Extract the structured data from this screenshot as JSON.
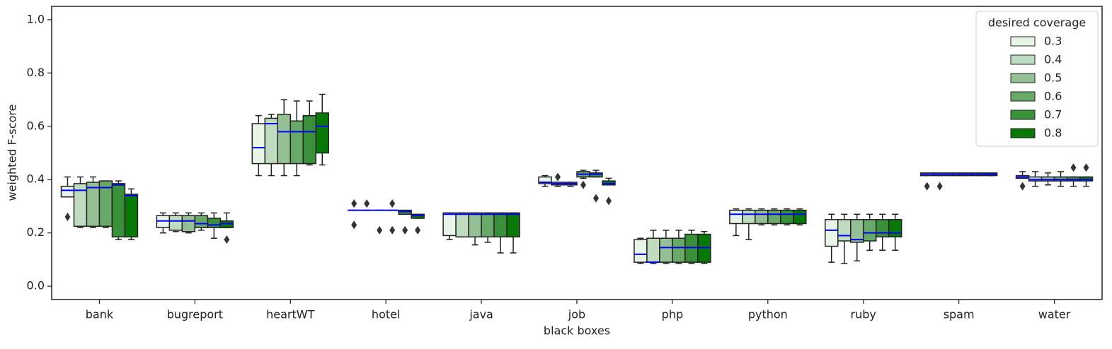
{
  "chart_data": {
    "type": "box",
    "xlabel": "black boxes",
    "ylabel": "weighted F-score",
    "categories": [
      "bank",
      "bugreport",
      "heartWT",
      "hotel",
      "java",
      "job",
      "php",
      "python",
      "ruby",
      "spam",
      "water"
    ],
    "ylim": [
      -0.05,
      1.05
    ],
    "yticks": [
      {
        "value": 0,
        "label": "0.0"
      },
      0.2,
      0.4,
      0.6,
      0.8,
      {
        "value": 1,
        "label": "1.0"
      }
    ],
    "median_color": "#0000ff",
    "legend_title": "desired coverage",
    "legend": "upper right",
    "series": [
      {
        "name": "0.3",
        "color": "#e8f4e8",
        "whislo": [
          0.335,
          0.2,
          0.415,
          0.285,
          0.175,
          0.375,
          0.085,
          0.19,
          0.09,
          0.415,
          0.405
        ],
        "q1": [
          0.335,
          0.22,
          0.46,
          0.285,
          0.19,
          0.385,
          0.09,
          0.235,
          0.15,
          0.415,
          0.405
        ],
        "median": [
          0.36,
          0.245,
          0.52,
          0.285,
          0.27,
          0.39,
          0.12,
          0.27,
          0.21,
          0.42,
          0.41
        ],
        "q3": [
          0.375,
          0.265,
          0.61,
          0.285,
          0.275,
          0.41,
          0.175,
          0.285,
          0.25,
          0.425,
          0.415
        ],
        "whishi": [
          0.41,
          0.275,
          0.64,
          0.285,
          0.275,
          0.415,
          0.18,
          0.29,
          0.27,
          0.425,
          0.43
        ],
        "fliers": [
          [
            0.26
          ],
          [],
          [],
          [
            0.31,
            0.23
          ],
          [],
          [],
          [],
          [],
          [],
          [
            0.375
          ],
          [
            0.375
          ]
        ]
      },
      {
        "name": "0.4",
        "color": "#c0dcc0",
        "whislo": [
          0.22,
          0.205,
          0.415,
          0.285,
          0.185,
          0.375,
          0.085,
          0.175,
          0.085,
          0.415,
          0.375
        ],
        "q1": [
          0.225,
          0.21,
          0.46,
          0.285,
          0.185,
          0.38,
          0.09,
          0.235,
          0.17,
          0.415,
          0.395
        ],
        "median": [
          0.36,
          0.245,
          0.61,
          0.285,
          0.27,
          0.385,
          0.09,
          0.27,
          0.19,
          0.42,
          0.4
        ],
        "q3": [
          0.385,
          0.265,
          0.63,
          0.285,
          0.275,
          0.39,
          0.18,
          0.285,
          0.25,
          0.425,
          0.41
        ],
        "whishi": [
          0.41,
          0.275,
          0.645,
          0.285,
          0.275,
          0.39,
          0.21,
          0.29,
          0.27,
          0.425,
          0.43
        ],
        "fliers": [
          [],
          [],
          [],
          [
            0.31
          ],
          [],
          [
            0.41
          ],
          [],
          [],
          [],
          [
            0.375
          ],
          []
        ]
      },
      {
        "name": "0.5",
        "color": "#95c095",
        "whislo": [
          0.22,
          0.2,
          0.415,
          0.285,
          0.155,
          0.375,
          0.085,
          0.23,
          0.095,
          0.415,
          0.38
        ],
        "q1": [
          0.225,
          0.205,
          0.46,
          0.285,
          0.185,
          0.38,
          0.09,
          0.235,
          0.165,
          0.415,
          0.395
        ],
        "median": [
          0.37,
          0.245,
          0.58,
          0.285,
          0.27,
          0.385,
          0.145,
          0.27,
          0.175,
          0.42,
          0.4
        ],
        "q3": [
          0.39,
          0.265,
          0.645,
          0.285,
          0.275,
          0.39,
          0.18,
          0.285,
          0.25,
          0.425,
          0.41
        ],
        "whishi": [
          0.41,
          0.275,
          0.7,
          0.285,
          0.275,
          0.39,
          0.21,
          0.29,
          0.27,
          0.425,
          0.425
        ],
        "fliers": [
          [],
          [],
          [],
          [
            0.21
          ],
          [],
          [],
          [],
          [],
          [],
          [],
          []
        ]
      },
      {
        "name": "0.6",
        "color": "#68a868",
        "whislo": [
          0.22,
          0.21,
          0.415,
          0.285,
          0.165,
          0.405,
          0.085,
          0.23,
          0.135,
          0.415,
          0.375
        ],
        "q1": [
          0.225,
          0.22,
          0.46,
          0.285,
          0.185,
          0.41,
          0.09,
          0.235,
          0.17,
          0.415,
          0.395
        ],
        "median": [
          0.37,
          0.235,
          0.58,
          0.285,
          0.27,
          0.42,
          0.145,
          0.27,
          0.2,
          0.42,
          0.4
        ],
        "q3": [
          0.395,
          0.265,
          0.62,
          0.285,
          0.275,
          0.43,
          0.18,
          0.285,
          0.25,
          0.425,
          0.41
        ],
        "whishi": [
          0.395,
          0.275,
          0.695,
          0.285,
          0.275,
          0.435,
          0.21,
          0.29,
          0.27,
          0.425,
          0.43
        ],
        "fliers": [
          [],
          [],
          [],
          [
            0.31,
            0.21
          ],
          [],
          [
            0.38
          ],
          [],
          [],
          [],
          [],
          []
        ]
      },
      {
        "name": "0.7",
        "color": "#3a8f3a",
        "whislo": [
          0.175,
          0.18,
          0.455,
          0.27,
          0.125,
          0.41,
          0.085,
          0.23,
          0.135,
          0.415,
          0.375
        ],
        "q1": [
          0.185,
          0.22,
          0.46,
          0.27,
          0.185,
          0.41,
          0.09,
          0.235,
          0.185,
          0.415,
          0.395
        ],
        "median": [
          0.38,
          0.23,
          0.58,
          0.28,
          0.27,
          0.42,
          0.145,
          0.27,
          0.2,
          0.42,
          0.4
        ],
        "q3": [
          0.385,
          0.255,
          0.64,
          0.285,
          0.275,
          0.425,
          0.195,
          0.285,
          0.25,
          0.425,
          0.41
        ],
        "whishi": [
          0.395,
          0.275,
          0.695,
          0.285,
          0.275,
          0.435,
          0.21,
          0.29,
          0.27,
          0.425,
          0.41
        ],
        "fliers": [
          [],
          [],
          [],
          [
            0.21
          ],
          [],
          [
            0.33
          ],
          [],
          [],
          [],
          [],
          [
            0.445
          ]
        ]
      },
      {
        "name": "0.8",
        "color": "#087808",
        "whislo": [
          0.175,
          0.22,
          0.455,
          0.255,
          0.125,
          0.38,
          0.085,
          0.23,
          0.135,
          0.415,
          0.375
        ],
        "q1": [
          0.185,
          0.22,
          0.5,
          0.255,
          0.185,
          0.38,
          0.09,
          0.235,
          0.185,
          0.415,
          0.395
        ],
        "median": [
          0.34,
          0.235,
          0.6,
          0.265,
          0.27,
          0.385,
          0.145,
          0.27,
          0.2,
          0.42,
          0.4
        ],
        "q3": [
          0.345,
          0.245,
          0.65,
          0.27,
          0.275,
          0.395,
          0.195,
          0.285,
          0.25,
          0.425,
          0.41
        ],
        "whishi": [
          0.365,
          0.275,
          0.72,
          0.27,
          0.275,
          0.405,
          0.205,
          0.29,
          0.27,
          0.425,
          0.41
        ],
        "fliers": [
          [],
          [
            0.175
          ],
          [],
          [
            0.21
          ],
          [],
          [
            0.32
          ],
          [],
          [],
          [],
          [],
          [
            0.445
          ]
        ]
      }
    ]
  }
}
